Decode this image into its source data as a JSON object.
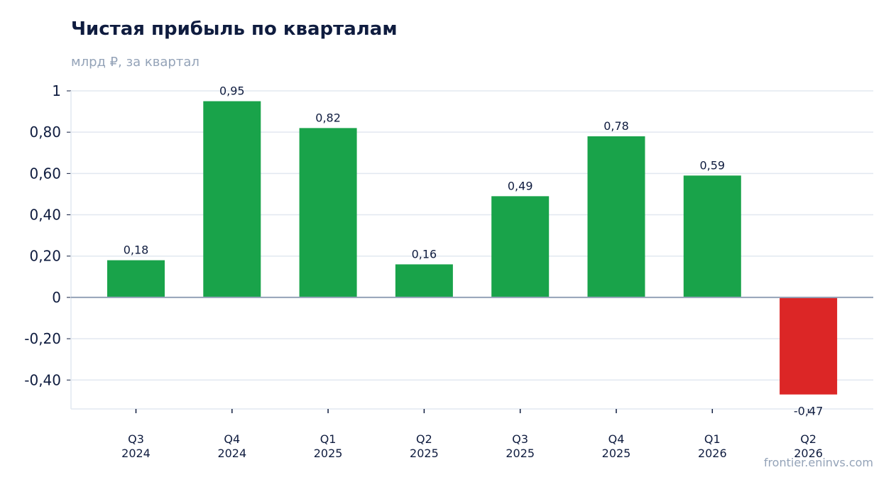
{
  "header": {
    "title": "Чистая прибыль по кварталам",
    "subtitle": "млрд ₽, за квартал"
  },
  "footer": {
    "source": "frontier.eninvs.com"
  },
  "colors": {
    "positive": "#19a34a",
    "negative": "#dc2626",
    "grid": "#e2e8f0",
    "zero_line": "#94a3b8",
    "text": "#0f1c3f",
    "muted": "#94a3b8"
  },
  "chart_data": {
    "type": "bar",
    "title": "Чистая прибыль по кварталам",
    "subtitle": "млрд ₽, за квартал",
    "xlabel": "",
    "ylabel": "",
    "categories": [
      [
        "Q3",
        "2024"
      ],
      [
        "Q4",
        "2024"
      ],
      [
        "Q1",
        "2025"
      ],
      [
        "Q2",
        "2025"
      ],
      [
        "Q3",
        "2025"
      ],
      [
        "Q4",
        "2025"
      ],
      [
        "Q1",
        "2026"
      ],
      [
        "Q2",
        "2026"
      ]
    ],
    "values": [
      0.18,
      0.95,
      0.82,
      0.16,
      0.49,
      0.78,
      0.59,
      -0.47
    ],
    "value_labels": [
      "0,18",
      "0,95",
      "0,82",
      "0,16",
      "0,49",
      "0,78",
      "0,59",
      "-0,47"
    ],
    "ylim": [
      -0.54,
      1
    ],
    "y_ticks": [
      1,
      0.8,
      0.6,
      0.4,
      0.2,
      0,
      -0.2,
      -0.4
    ],
    "y_tick_labels": [
      "1",
      "0,80",
      "0,60",
      "0,40",
      "0,20",
      "0",
      "-0,20",
      "-0,40"
    ],
    "grid": true,
    "legend": "none"
  }
}
